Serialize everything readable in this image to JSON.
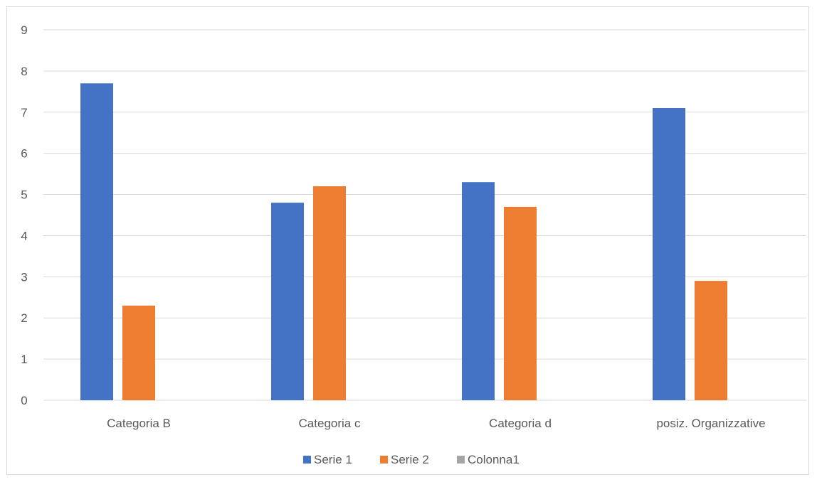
{
  "chart_data": {
    "type": "bar",
    "categories": [
      "Categoria B",
      "Categoria c",
      "Categoria d",
      "posiz. Organizzative"
    ],
    "series": [
      {
        "name": "Serie 1",
        "values": [
          7.7,
          4.8,
          5.3,
          7.1
        ],
        "color": "#4472c4"
      },
      {
        "name": "Serie 2",
        "values": [
          2.3,
          5.2,
          4.7,
          2.9
        ],
        "color": "#ed7d31"
      },
      {
        "name": "Colonna1",
        "values": [
          0,
          0,
          0,
          0
        ],
        "color": "#a5a5a5"
      }
    ],
    "title": "",
    "xlabel": "",
    "ylabel": "",
    "ylim": [
      0,
      9
    ],
    "yticks": [
      "0",
      "1",
      "2",
      "3",
      "4",
      "5",
      "6",
      "7",
      "8",
      "9"
    ],
    "grid": true,
    "legend_position": "bottom"
  }
}
